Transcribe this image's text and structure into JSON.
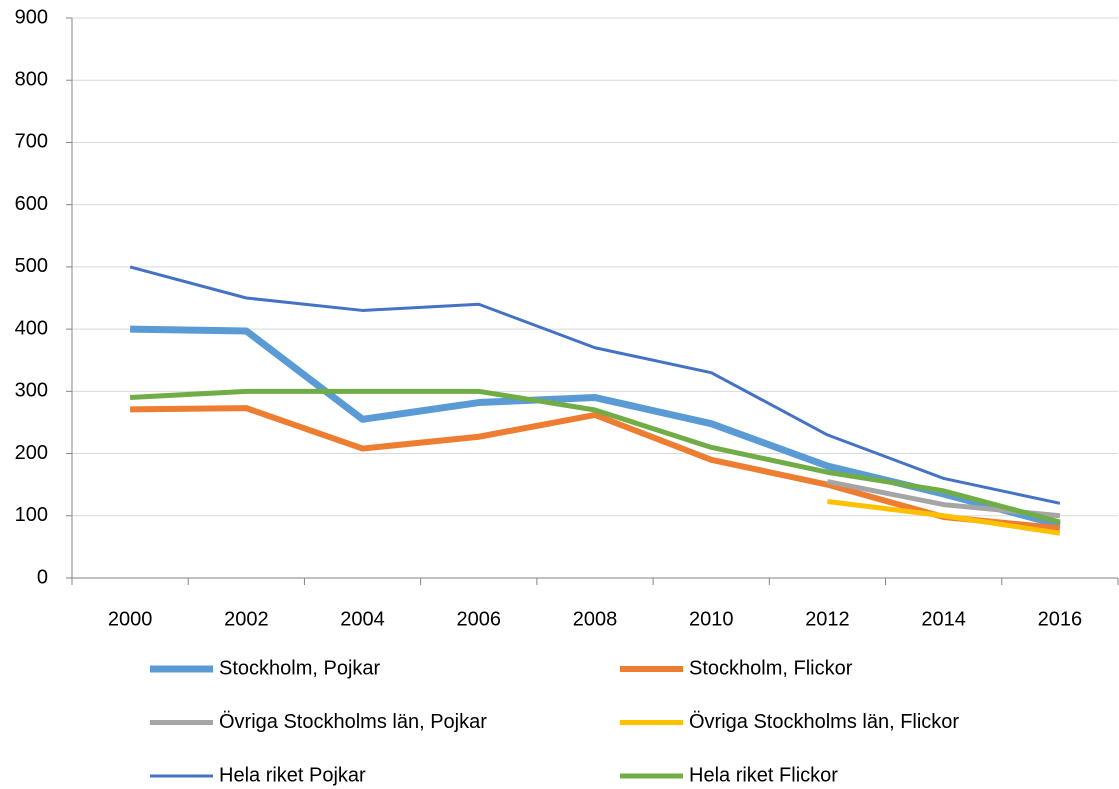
{
  "chart_data": {
    "type": "line",
    "categories": [
      "2000",
      "2002",
      "2004",
      "2006",
      "2008",
      "2010",
      "2012",
      "2014",
      "2016"
    ],
    "series": [
      {
        "name": "Stockholm, Pojkar",
        "color": "#5b9bd5",
        "values": [
          400,
          397,
          255,
          282,
          290,
          248,
          180,
          135,
          85
        ]
      },
      {
        "name": "Stockholm, Flickor",
        "color": "#ed7d31",
        "values": [
          271,
          273,
          208,
          227,
          262,
          190,
          150,
          98,
          80
        ]
      },
      {
        "name": "Övriga Stockholms län, Pojkar",
        "color": "#a5a5a5",
        "values": [
          null,
          null,
          null,
          null,
          null,
          null,
          155,
          118,
          100
        ]
      },
      {
        "name": "Övriga Stockholms län, Flickor",
        "color": "#ffc000",
        "values": [
          null,
          null,
          null,
          null,
          null,
          null,
          123,
          100,
          72
        ]
      },
      {
        "name": "Hela riket Pojkar",
        "color": "#4472c4",
        "values": [
          500,
          450,
          430,
          440,
          370,
          330,
          230,
          160,
          120
        ]
      },
      {
        "name": "Hela riket Flickor",
        "color": "#70ad47",
        "values": [
          290,
          300,
          300,
          300,
          270,
          210,
          170,
          140,
          90
        ]
      }
    ],
    "ylim": [
      0,
      900
    ],
    "yticks": [
      0,
      100,
      200,
      300,
      400,
      500,
      600,
      700,
      800,
      900
    ],
    "grid": true
  }
}
